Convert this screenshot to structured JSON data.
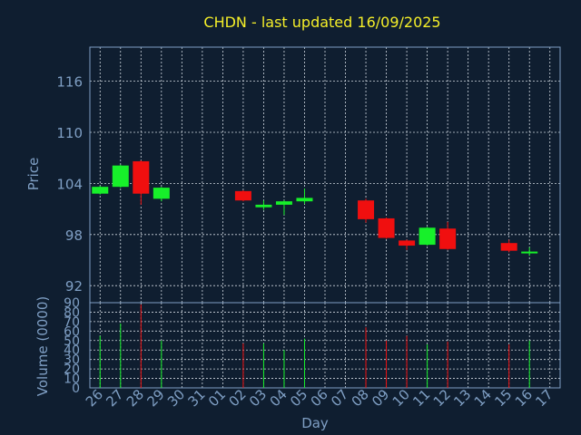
{
  "chart_data": {
    "type": "candlestick",
    "title": "CHDN - last updated 16/09/2025",
    "xlabel": "Day",
    "price_panel": {
      "ylabel": "Price",
      "ylim": [
        90,
        120
      ],
      "yticks": [
        92,
        98,
        104,
        110,
        116
      ],
      "grid": true
    },
    "volume_panel": {
      "ylabel": "Volume (0000)",
      "ylim": [
        0,
        90
      ],
      "yticks": [
        0,
        10,
        20,
        30,
        40,
        50,
        60,
        70,
        80,
        90
      ],
      "grid": true
    },
    "x_ticks": [
      "26",
      "27",
      "28",
      "29",
      "30",
      "31",
      "01",
      "02",
      "03",
      "04",
      "05",
      "06",
      "07",
      "08",
      "09",
      "10",
      "11",
      "12",
      "13",
      "14",
      "15",
      "16",
      "17"
    ],
    "candles": [
      {
        "day": "26",
        "open": 102.8,
        "close": 103.6,
        "high": 103.7,
        "low": 102.7,
        "volume": 55
      },
      {
        "day": "27",
        "open": 103.6,
        "close": 106.1,
        "high": 106.2,
        "low": 103.5,
        "volume": 68
      },
      {
        "day": "28",
        "open": 106.6,
        "close": 102.8,
        "high": 106.7,
        "low": 101.5,
        "volume": 88
      },
      {
        "day": "29",
        "open": 102.2,
        "close": 103.5,
        "high": 103.6,
        "low": 101.9,
        "volume": 50
      },
      {
        "day": "02",
        "open": 103.1,
        "close": 102.0,
        "high": 103.2,
        "low": 101.9,
        "volume": 47
      },
      {
        "day": "03",
        "open": 101.2,
        "close": 101.5,
        "high": 102.0,
        "low": 100.9,
        "volume": 47
      },
      {
        "day": "04",
        "open": 101.5,
        "close": 101.9,
        "high": 102.0,
        "low": 100.3,
        "volume": 40
      },
      {
        "day": "05",
        "open": 101.9,
        "close": 102.3,
        "high": 103.4,
        "low": 101.6,
        "volume": 52
      },
      {
        "day": "08",
        "open": 102.0,
        "close": 99.8,
        "high": 102.2,
        "low": 99.4,
        "volume": 64
      },
      {
        "day": "09",
        "open": 99.9,
        "close": 97.6,
        "high": 100.0,
        "low": 97.5,
        "volume": 50
      },
      {
        "day": "10",
        "open": 97.3,
        "close": 96.7,
        "high": 97.4,
        "low": 96.2,
        "volume": 55
      },
      {
        "day": "11",
        "open": 96.8,
        "close": 98.8,
        "high": 98.9,
        "low": 96.7,
        "volume": 46
      },
      {
        "day": "12",
        "open": 98.7,
        "close": 96.3,
        "high": 99.5,
        "low": 96.2,
        "volume": 49
      },
      {
        "day": "15",
        "open": 97.0,
        "close": 96.1,
        "high": 97.4,
        "low": 95.9,
        "volume": 46
      },
      {
        "day": "16",
        "open": 95.9,
        "close": 96.0,
        "high": 96.5,
        "low": 95.5,
        "volume": 50
      }
    ],
    "colors": {
      "background": "#0f1e30",
      "axis": "#7f9fc4",
      "grid": "#d0d8e0",
      "up": "#17f02a",
      "down": "#f00f0f",
      "title": "#f4ee29"
    }
  }
}
